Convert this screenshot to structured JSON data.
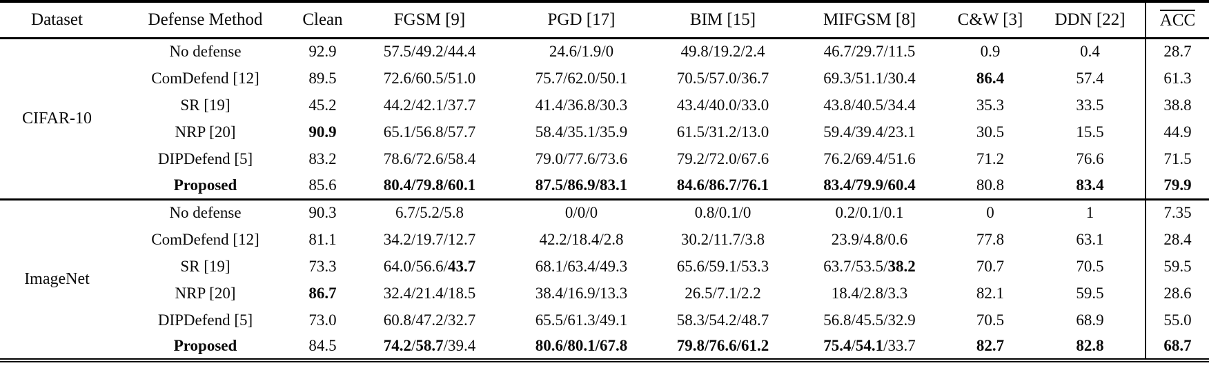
{
  "table": {
    "columns": [
      {
        "key": "dataset",
        "label": "Dataset",
        "overline": false,
        "separator_left": false
      },
      {
        "key": "method",
        "label": "Defense Method",
        "overline": false,
        "separator_left": false
      },
      {
        "key": "clean",
        "label": "Clean",
        "overline": false,
        "separator_left": false
      },
      {
        "key": "fgsm",
        "label": "FGSM [9]",
        "overline": false,
        "separator_left": false
      },
      {
        "key": "pgd",
        "label": "PGD [17]",
        "overline": false,
        "separator_left": false
      },
      {
        "key": "bim",
        "label": "BIM [15]",
        "overline": false,
        "separator_left": false
      },
      {
        "key": "mifgsm",
        "label": "MIFGSM [8]",
        "overline": false,
        "separator_left": false
      },
      {
        "key": "cw",
        "label": "C&W [3]",
        "overline": false,
        "separator_left": false
      },
      {
        "key": "ddn",
        "label": "DDN [22]",
        "overline": false,
        "separator_left": false
      },
      {
        "key": "acc",
        "label": "ACC",
        "overline": true,
        "separator_left": true
      }
    ],
    "groups": [
      {
        "dataset": "CIFAR-10",
        "rows": [
          {
            "method": {
              "t": "No defense",
              "b": false
            },
            "cells": [
              [
                {
                  "t": "92.9",
                  "b": false
                }
              ],
              [
                {
                  "t": "57.5/49.2/44.4",
                  "b": false
                }
              ],
              [
                {
                  "t": "24.6/1.9/0",
                  "b": false
                }
              ],
              [
                {
                  "t": "49.8/19.2/2.4",
                  "b": false
                }
              ],
              [
                {
                  "t": "46.7/29.7/11.5",
                  "b": false
                }
              ],
              [
                {
                  "t": "0.9",
                  "b": false
                }
              ],
              [
                {
                  "t": "0.4",
                  "b": false
                }
              ],
              [
                {
                  "t": "28.7",
                  "b": false
                }
              ]
            ]
          },
          {
            "method": {
              "t": "ComDefend [12]",
              "b": false
            },
            "cells": [
              [
                {
                  "t": "89.5",
                  "b": false
                }
              ],
              [
                {
                  "t": "72.6/60.5/51.0",
                  "b": false
                }
              ],
              [
                {
                  "t": "75.7/62.0/50.1",
                  "b": false
                }
              ],
              [
                {
                  "t": "70.5/57.0/36.7",
                  "b": false
                }
              ],
              [
                {
                  "t": "69.3/51.1/30.4",
                  "b": false
                }
              ],
              [
                {
                  "t": "86.4",
                  "b": true
                }
              ],
              [
                {
                  "t": "57.4",
                  "b": false
                }
              ],
              [
                {
                  "t": "61.3",
                  "b": false
                }
              ]
            ]
          },
          {
            "method": {
              "t": "SR [19]",
              "b": false
            },
            "cells": [
              [
                {
                  "t": "45.2",
                  "b": false
                }
              ],
              [
                {
                  "t": "44.2/42.1/37.7",
                  "b": false
                }
              ],
              [
                {
                  "t": "41.4/36.8/30.3",
                  "b": false
                }
              ],
              [
                {
                  "t": "43.4/40.0/33.0",
                  "b": false
                }
              ],
              [
                {
                  "t": "43.8/40.5/34.4",
                  "b": false
                }
              ],
              [
                {
                  "t": "35.3",
                  "b": false
                }
              ],
              [
                {
                  "t": "33.5",
                  "b": false
                }
              ],
              [
                {
                  "t": "38.8",
                  "b": false
                }
              ]
            ]
          },
          {
            "method": {
              "t": "NRP [20]",
              "b": false
            },
            "cells": [
              [
                {
                  "t": "90.9",
                  "b": true
                }
              ],
              [
                {
                  "t": "65.1/56.8/57.7",
                  "b": false
                }
              ],
              [
                {
                  "t": "58.4/35.1/35.9",
                  "b": false
                }
              ],
              [
                {
                  "t": "61.5/31.2/13.0",
                  "b": false
                }
              ],
              [
                {
                  "t": "59.4/39.4/23.1",
                  "b": false
                }
              ],
              [
                {
                  "t": "30.5",
                  "b": false
                }
              ],
              [
                {
                  "t": "15.5",
                  "b": false
                }
              ],
              [
                {
                  "t": "44.9",
                  "b": false
                }
              ]
            ]
          },
          {
            "method": {
              "t": "DIPDefend [5]",
              "b": false
            },
            "cells": [
              [
                {
                  "t": "83.2",
                  "b": false
                }
              ],
              [
                {
                  "t": "78.6/72.6/58.4",
                  "b": false
                }
              ],
              [
                {
                  "t": "79.0/77.6/73.6",
                  "b": false
                }
              ],
              [
                {
                  "t": "79.2/72.0/67.6",
                  "b": false
                }
              ],
              [
                {
                  "t": "76.2/69.4/51.6",
                  "b": false
                }
              ],
              [
                {
                  "t": "71.2",
                  "b": false
                }
              ],
              [
                {
                  "t": "76.6",
                  "b": false
                }
              ],
              [
                {
                  "t": "71.5",
                  "b": false
                }
              ]
            ]
          },
          {
            "method": {
              "t": "Proposed",
              "b": true
            },
            "cells": [
              [
                {
                  "t": "85.6",
                  "b": false
                }
              ],
              [
                {
                  "t": "80.4/79.8/60.1",
                  "b": true
                }
              ],
              [
                {
                  "t": "87.5/86.9/83.1",
                  "b": true
                }
              ],
              [
                {
                  "t": "84.6/86.7/76.1",
                  "b": true
                }
              ],
              [
                {
                  "t": "83.4/79.9/60.4",
                  "b": true
                }
              ],
              [
                {
                  "t": "80.8",
                  "b": false
                }
              ],
              [
                {
                  "t": "83.4",
                  "b": true
                }
              ],
              [
                {
                  "t": "79.9",
                  "b": true
                }
              ]
            ]
          }
        ]
      },
      {
        "dataset": "ImageNet",
        "rows": [
          {
            "method": {
              "t": "No defense",
              "b": false
            },
            "cells": [
              [
                {
                  "t": "90.3",
                  "b": false
                }
              ],
              [
                {
                  "t": "6.7/5.2/5.8",
                  "b": false
                }
              ],
              [
                {
                  "t": "0/0/0",
                  "b": false
                }
              ],
              [
                {
                  "t": "0.8/0.1/0",
                  "b": false
                }
              ],
              [
                {
                  "t": "0.2/0.1/0.1",
                  "b": false
                }
              ],
              [
                {
                  "t": "0",
                  "b": false
                }
              ],
              [
                {
                  "t": "1",
                  "b": false
                }
              ],
              [
                {
                  "t": "7.35",
                  "b": false
                }
              ]
            ]
          },
          {
            "method": {
              "t": "ComDefend [12]",
              "b": false
            },
            "cells": [
              [
                {
                  "t": "81.1",
                  "b": false
                }
              ],
              [
                {
                  "t": "34.2/19.7/12.7",
                  "b": false
                }
              ],
              [
                {
                  "t": "42.2/18.4/2.8",
                  "b": false
                }
              ],
              [
                {
                  "t": "30.2/11.7/3.8",
                  "b": false
                }
              ],
              [
                {
                  "t": "23.9/4.8/0.6",
                  "b": false
                }
              ],
              [
                {
                  "t": "77.8",
                  "b": false
                }
              ],
              [
                {
                  "t": "63.1",
                  "b": false
                }
              ],
              [
                {
                  "t": "28.4",
                  "b": false
                }
              ]
            ]
          },
          {
            "method": {
              "t": "SR [19]",
              "b": false
            },
            "cells": [
              [
                {
                  "t": "73.3",
                  "b": false
                }
              ],
              [
                {
                  "t": "64.0/56.6/",
                  "b": false
                },
                {
                  "t": "43.7",
                  "b": true
                }
              ],
              [
                {
                  "t": "68.1/63.4/49.3",
                  "b": false
                }
              ],
              [
                {
                  "t": "65.6/59.1/53.3",
                  "b": false
                }
              ],
              [
                {
                  "t": "63.7/53.5/",
                  "b": false
                },
                {
                  "t": "38.2",
                  "b": true
                }
              ],
              [
                {
                  "t": "70.7",
                  "b": false
                }
              ],
              [
                {
                  "t": "70.5",
                  "b": false
                }
              ],
              [
                {
                  "t": "59.5",
                  "b": false
                }
              ]
            ]
          },
          {
            "method": {
              "t": "NRP [20]",
              "b": false
            },
            "cells": [
              [
                {
                  "t": "86.7",
                  "b": true
                }
              ],
              [
                {
                  "t": "32.4/21.4/18.5",
                  "b": false
                }
              ],
              [
                {
                  "t": "38.4/16.9/13.3",
                  "b": false
                }
              ],
              [
                {
                  "t": "26.5/7.1/2.2",
                  "b": false
                }
              ],
              [
                {
                  "t": "18.4/2.8/3.3",
                  "b": false
                }
              ],
              [
                {
                  "t": "82.1",
                  "b": false
                }
              ],
              [
                {
                  "t": "59.5",
                  "b": false
                }
              ],
              [
                {
                  "t": "28.6",
                  "b": false
                }
              ]
            ]
          },
          {
            "method": {
              "t": "DIPDefend [5]",
              "b": false
            },
            "cells": [
              [
                {
                  "t": "73.0",
                  "b": false
                }
              ],
              [
                {
                  "t": "60.8/47.2/32.7",
                  "b": false
                }
              ],
              [
                {
                  "t": "65.5/61.3/49.1",
                  "b": false
                }
              ],
              [
                {
                  "t": "58.3/54.2/48.7",
                  "b": false
                }
              ],
              [
                {
                  "t": "56.8/45.5/32.9",
                  "b": false
                }
              ],
              [
                {
                  "t": "70.5",
                  "b": false
                }
              ],
              [
                {
                  "t": "68.9",
                  "b": false
                }
              ],
              [
                {
                  "t": "55.0",
                  "b": false
                }
              ]
            ]
          },
          {
            "method": {
              "t": "Proposed",
              "b": true
            },
            "cells": [
              [
                {
                  "t": "84.5",
                  "b": false
                }
              ],
              [
                {
                  "t": "74.2",
                  "b": true
                },
                {
                  "t": "/",
                  "b": false
                },
                {
                  "t": "58.7",
                  "b": true
                },
                {
                  "t": "/39.4",
                  "b": false
                }
              ],
              [
                {
                  "t": "80.6/80.1/67.8",
                  "b": true
                }
              ],
              [
                {
                  "t": "79.8/76.6/61.2",
                  "b": true
                }
              ],
              [
                {
                  "t": "75.4",
                  "b": true
                },
                {
                  "t": "/",
                  "b": false
                },
                {
                  "t": "54.1",
                  "b": true
                },
                {
                  "t": "/33.7",
                  "b": false
                }
              ],
              [
                {
                  "t": "82.7",
                  "b": true
                }
              ],
              [
                {
                  "t": "82.8",
                  "b": true
                }
              ],
              [
                {
                  "t": "68.7",
                  "b": true
                }
              ]
            ]
          }
        ]
      }
    ]
  }
}
